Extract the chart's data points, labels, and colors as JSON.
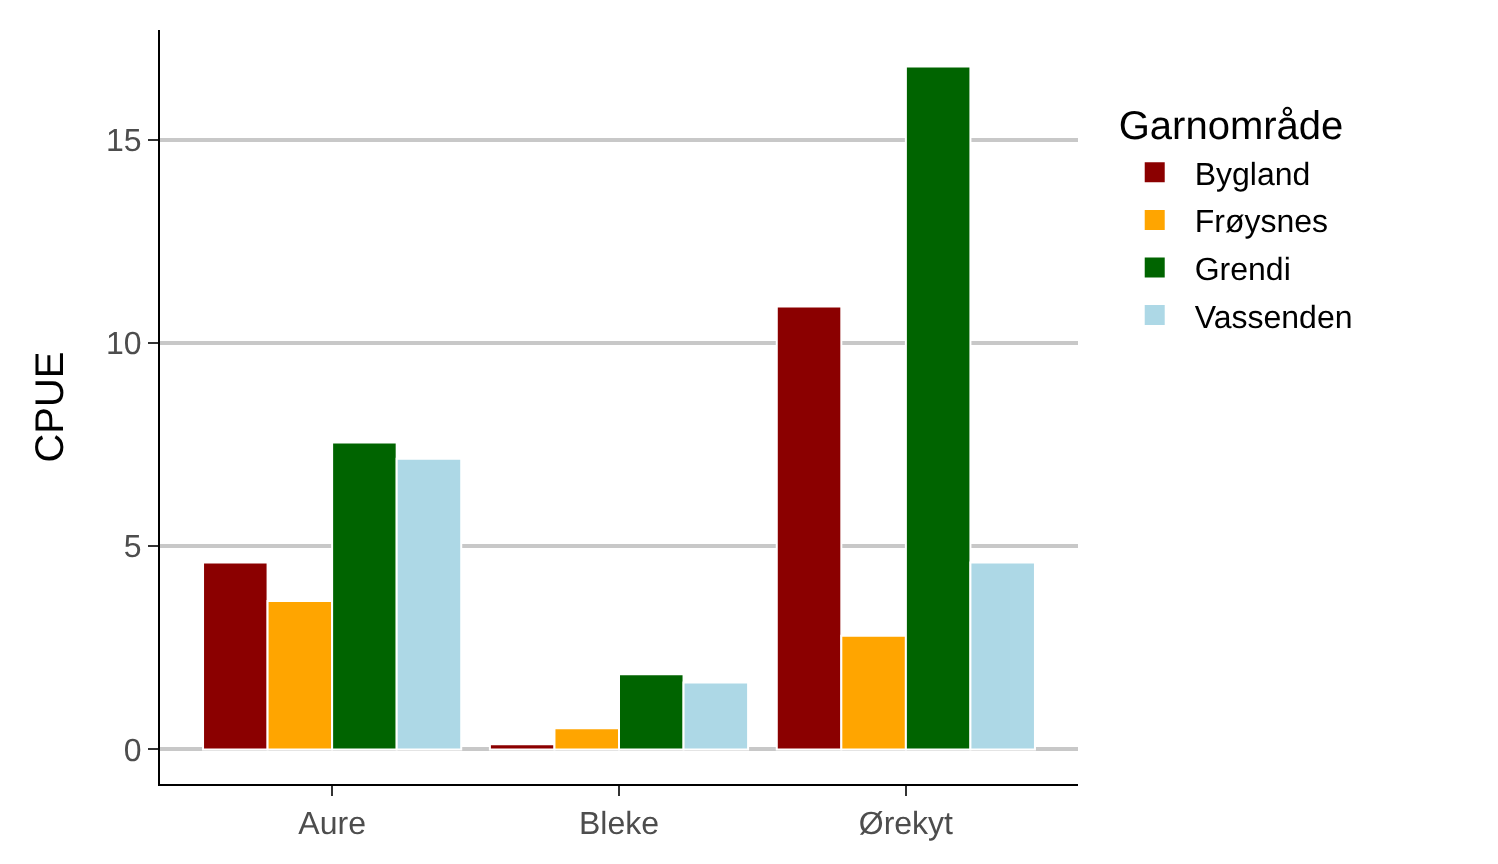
{
  "chart_data": {
    "type": "bar",
    "ylabel": "CPUE",
    "legend_title": "Garnområde",
    "categories": [
      "Aure",
      "Bleke",
      "Ørekyt"
    ],
    "series": [
      {
        "name": "Bygland",
        "color": "#8b0000",
        "values": [
          4.6,
          0.13,
          10.9
        ]
      },
      {
        "name": "Frøysnes",
        "color": "#ffa500",
        "values": [
          3.65,
          0.52,
          2.8
        ]
      },
      {
        "name": "Grendi",
        "color": "#006400",
        "values": [
          7.55,
          1.85,
          16.8
        ]
      },
      {
        "name": "Vassenden",
        "color": "#add8e6",
        "values": [
          7.15,
          1.65,
          4.6
        ]
      }
    ],
    "ylim": [
      -0.85,
      17.7
    ],
    "yticks": [
      0,
      5,
      10,
      15
    ],
    "grid": "y",
    "legend": "right"
  }
}
